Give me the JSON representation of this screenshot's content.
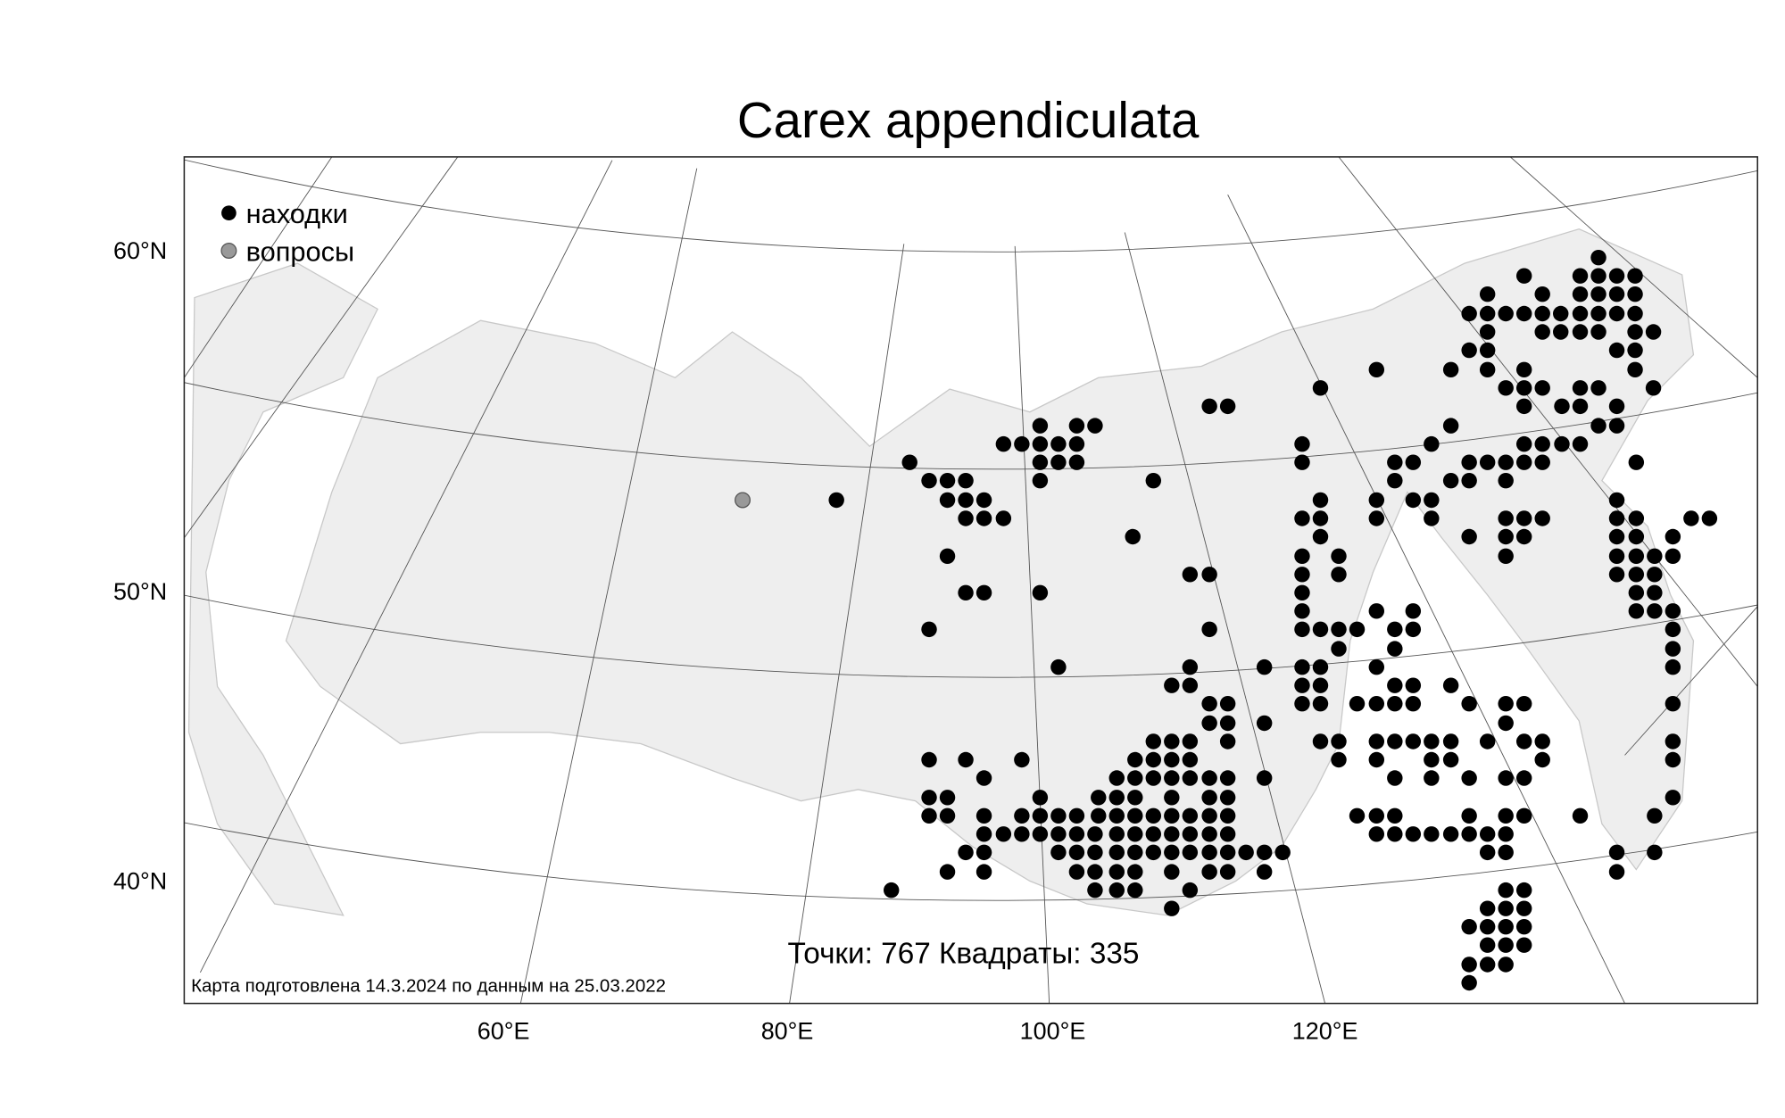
{
  "title": "Carex appendiculata",
  "legend": [
    "находки",
    "вопросы"
  ],
  "y_labels": [
    "60°N",
    "50°N",
    "40°N"
  ],
  "x_labels": [
    "60°E",
    "80°E",
    "100°E",
    "120°E"
  ],
  "stats": "Точки: 767 Квадраты: 335",
  "footnote": "Карта подготовлена 14.3.2024 по данным на 25.03.2022"
}
